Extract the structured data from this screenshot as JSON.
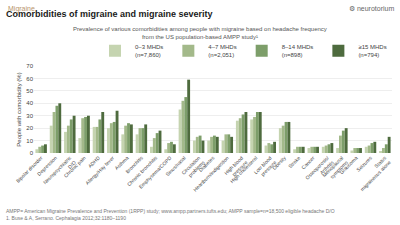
{
  "chart_data": {
    "type": "bar",
    "title": "Comorbidities of migraine and migraine severity",
    "subtitle": "Prevalence of various comorbidities among people with migraine based on headache frequency\nfrom the US population-based AMPP study¹",
    "y_label": "People with comorbidity (%)",
    "annotations": [
      "Migraine",
      "⚙ neurotorium",
      "AMPP= American Migraine Prevalence and Prevention (1RPP) study; www.ampp.partners.tufts.edu; AMPP sample=n=18,500 eligible headache D/O\n1. Buse & A, Serrano. Cephalagia 2012;32:1180–1190"
    ],
    "categories": [
      "Bipolar disorder",
      "Depression",
      "Neuropsychiatric\nD/O",
      "Chronic pain",
      "ADHD",
      "Allergy/Hay fever",
      "Asthma",
      "Bronchitis",
      "Chronic bronchitis",
      "Emphysema/COPD",
      "Sinus/nasal",
      "Circulation\nproblems",
      "Diabetes",
      "Heartburn/indigestion",
      "High blood\npressure",
      "High cholesterol",
      "Low blood\npressure",
      "Obesity",
      "Stroke",
      "Cancer",
      "Osteoporosis/\nArthritis",
      "Menopausal\nsymptoms",
      "Glaucoma",
      "Seizures",
      "Status\nmigrainosus alone"
    ],
    "series": [
      {
        "name": "0–3 MHDs\n(n=7,860)",
        "color": "#c5d4b0",
        "values": [
          3,
          22,
          17,
          12,
          21,
          20,
          15,
          15,
          5,
          3,
          35,
          10,
          10,
          10,
          26,
          27,
          6,
          20,
          3,
          4,
          5,
          4,
          2,
          5,
          1
        ]
      },
      {
        "name": "4–7 MHDs\n(n=2,051)",
        "color": "#a3b98a",
        "values": [
          5,
          33,
          22,
          28,
          21,
          24,
          22,
          20,
          12,
          8,
          42,
          13,
          13,
          15,
          28,
          29,
          8,
          22,
          5,
          5,
          6,
          14,
          4,
          6,
          4
        ]
      },
      {
        "name": "8–14 MHDs\n(n=898)",
        "color": "#7d9e6a",
        "values": [
          6,
          38,
          27,
          29,
          27,
          25,
          24,
          20,
          16,
          9,
          45,
          14,
          14,
          15,
          31,
          33,
          7,
          25,
          5,
          5,
          7,
          18,
          4,
          8,
          7
        ]
      },
      {
        "name": "≥15 MHDs\n(n=794)",
        "color": "#4e6b3e",
        "values": [
          7,
          40,
          30,
          30,
          33,
          34,
          23,
          23,
          18,
          7,
          59,
          10,
          13,
          13,
          33,
          33,
          9,
          25,
          5,
          5,
          8,
          20,
          4,
          9,
          13
        ]
      }
    ],
    "ylim": [
      0,
      70
    ],
    "yticks": [
      0,
      10,
      20,
      30,
      40,
      50,
      60,
      70
    ],
    "grid": true,
    "legend": "upper right"
  }
}
